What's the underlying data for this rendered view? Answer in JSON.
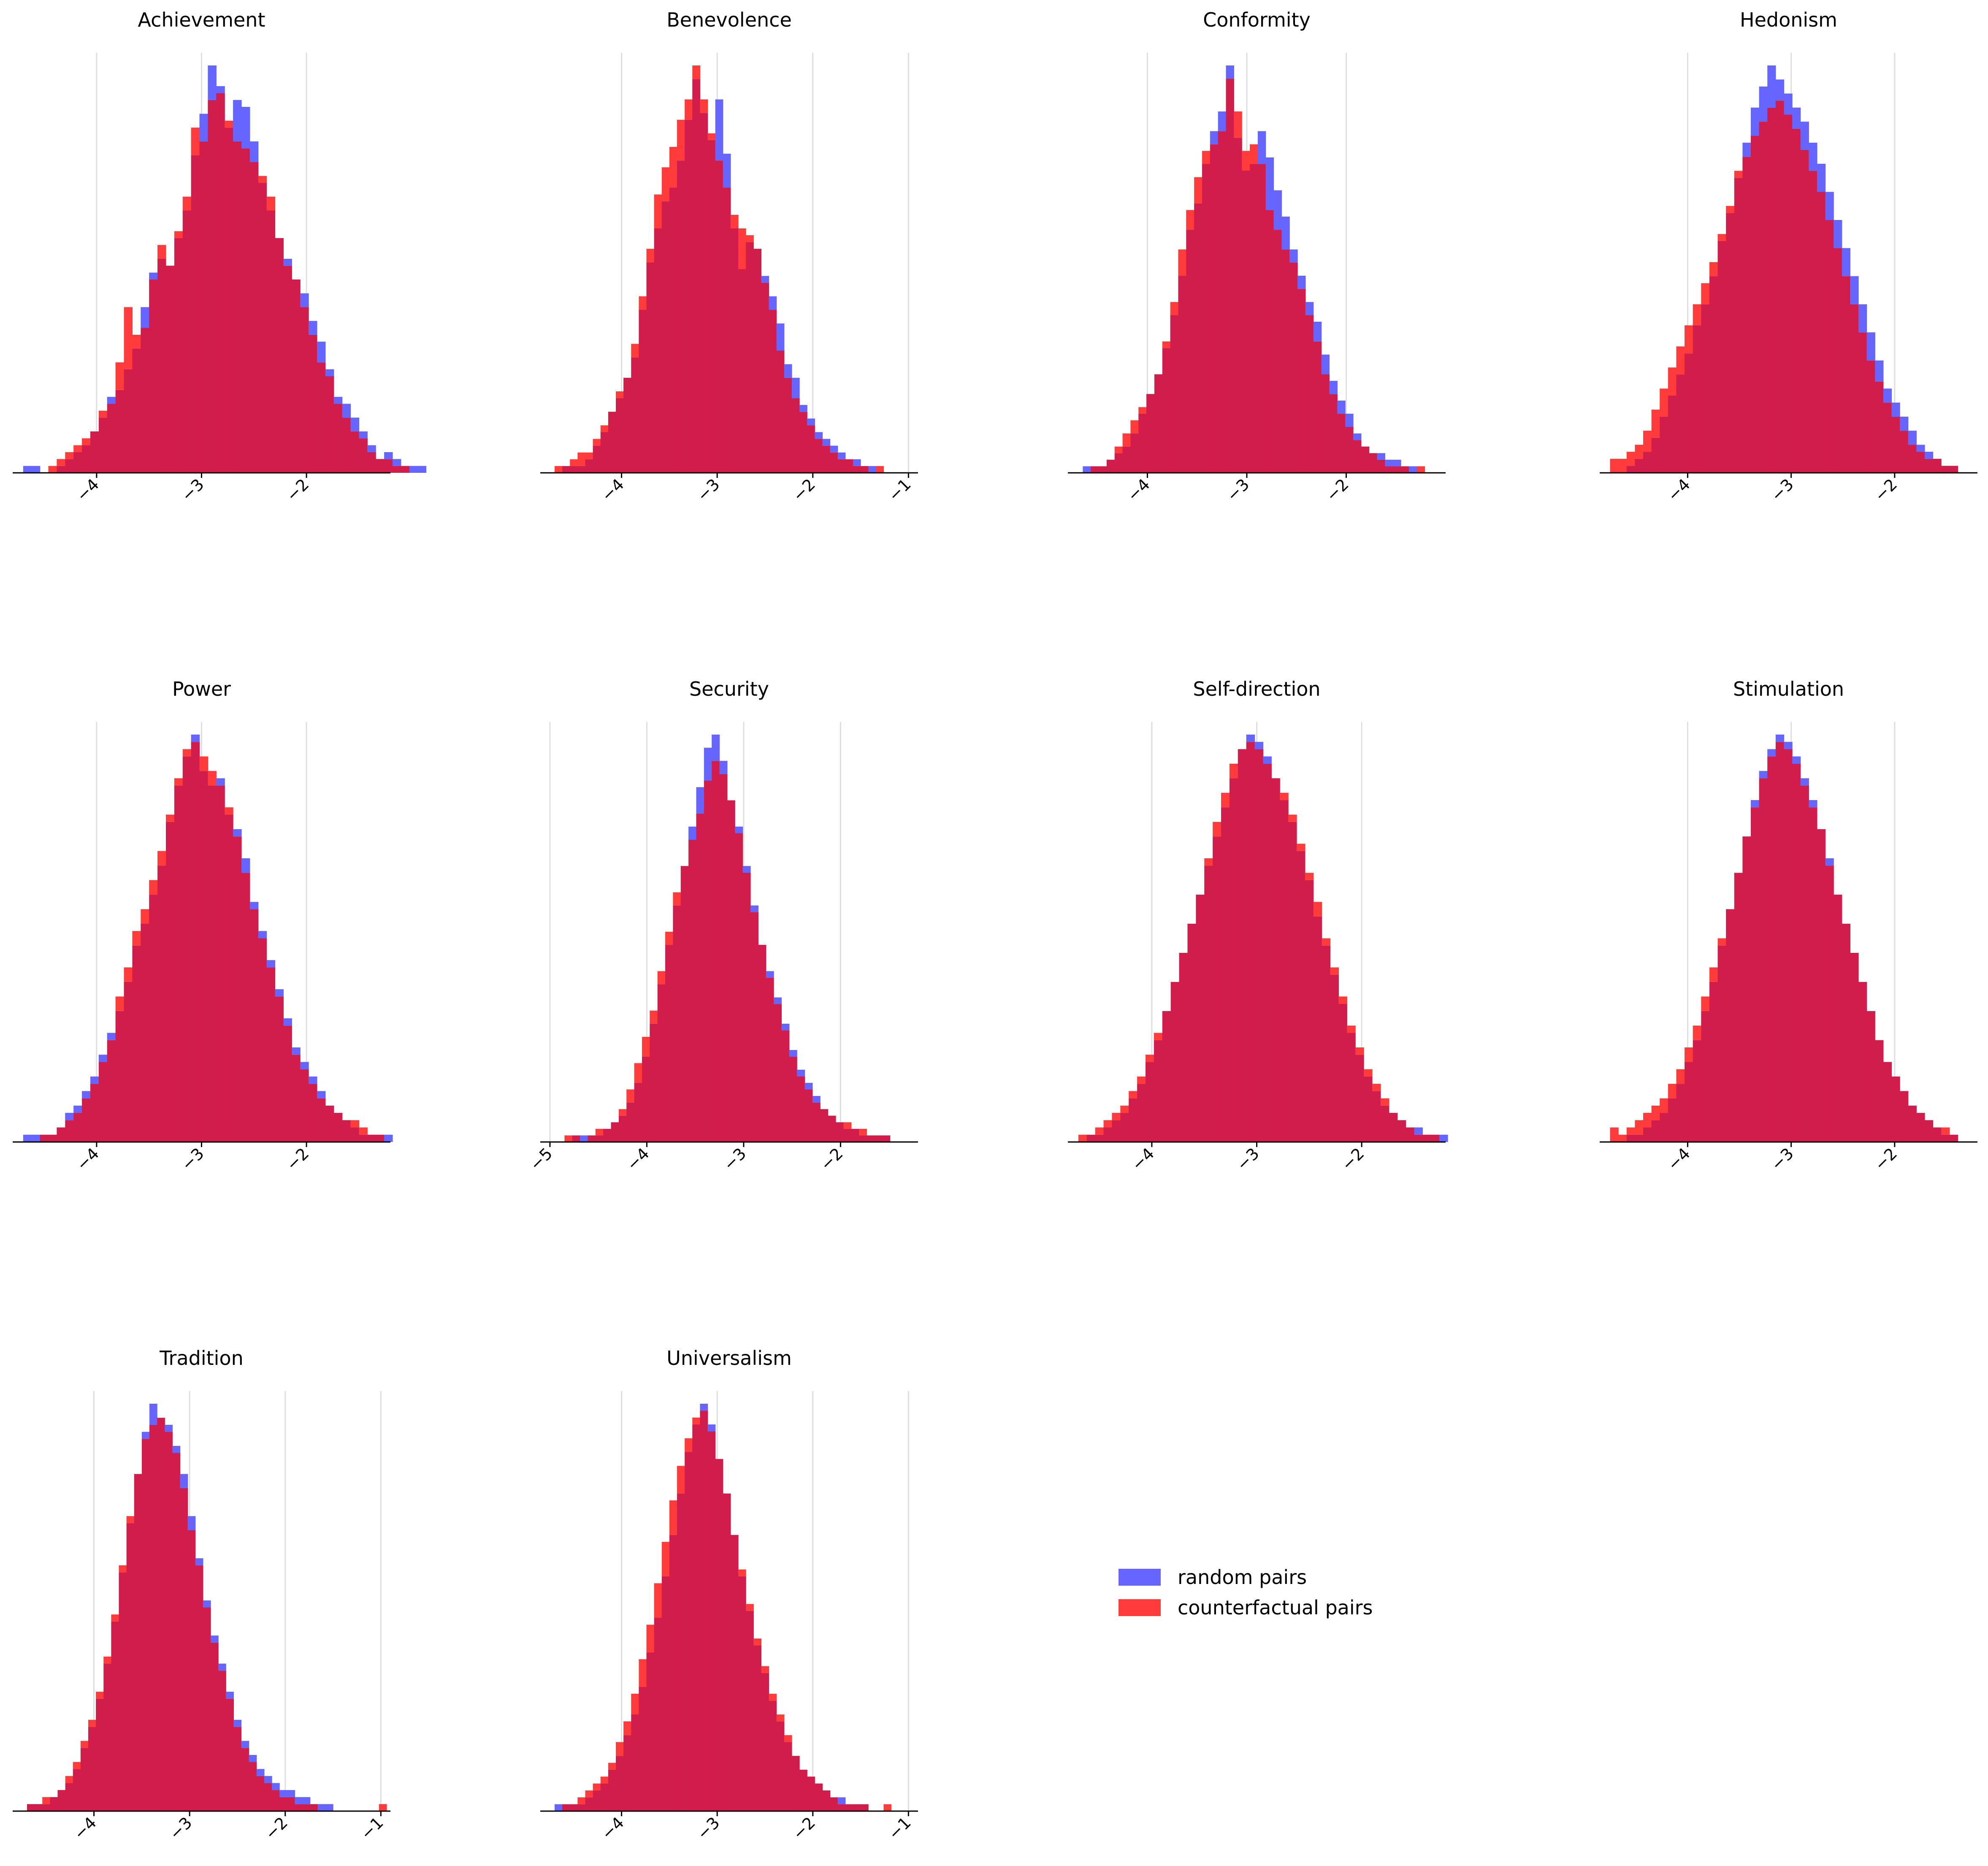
{
  "chart_data": {
    "type": "histogram-grid",
    "colors": {
      "random": "#6666ff",
      "counterfactual": "#ff3b3b",
      "overlap": "#d11d4c"
    },
    "legend": {
      "placement": "center-left of empty grid cell",
      "entries": [
        "random pairs",
        "counterfactual pairs"
      ]
    },
    "series": [
      {
        "name": "random pairs"
      },
      {
        "name": "counterfactual pairs"
      }
    ],
    "panels": [
      {
        "title": "Achievement",
        "xlim": [
          -4.8,
          -1.2
        ],
        "ticks": [
          -4,
          -3,
          -2
        ],
        "tick_labels": [
          "−4",
          "−3",
          "−2"
        ],
        "bin_start": -4.7,
        "bin_width": 0.08,
        "random": [
          1,
          1,
          0,
          0,
          1,
          2,
          3,
          4,
          6,
          8,
          11,
          12,
          15,
          18,
          24,
          29,
          31,
          30,
          34,
          38,
          46,
          52,
          59,
          56,
          50,
          54,
          53,
          48,
          42,
          38,
          34,
          31,
          28,
          26,
          22,
          19,
          15,
          11,
          10,
          8,
          6,
          4,
          2,
          3,
          2,
          1,
          1,
          1
        ],
        "counterfactual": [
          0,
          0,
          0,
          1,
          2,
          3,
          4,
          5,
          6,
          9,
          10,
          16,
          24,
          20,
          21,
          28,
          33,
          30,
          35,
          40,
          50,
          48,
          54,
          55,
          51,
          48,
          47,
          45,
          43,
          40,
          34,
          30,
          28,
          24,
          20,
          16,
          14,
          10,
          8,
          6,
          5,
          3,
          2,
          2,
          1,
          1,
          0,
          0
        ]
      },
      {
        "title": "Benevolence",
        "xlim": [
          -4.85,
          -0.9
        ],
        "ticks": [
          -4,
          -3,
          -2,
          -1
        ],
        "tick_labels": [
          "−4",
          "−3",
          "−2",
          "−1"
        ],
        "bin_start": -4.7,
        "bin_width": 0.08,
        "random": [
          0,
          1,
          1,
          1,
          2,
          4,
          6,
          9,
          11,
          14,
          17,
          24,
          31,
          36,
          40,
          42,
          46,
          52,
          58,
          53,
          49,
          55,
          47,
          36,
          30,
          34,
          33,
          29,
          26,
          22,
          16,
          14,
          10,
          8,
          6,
          5,
          4,
          3,
          2,
          2,
          1,
          1,
          0,
          0
        ],
        "counterfactual": [
          1,
          1,
          2,
          3,
          3,
          5,
          7,
          9,
          12,
          14,
          19,
          26,
          33,
          41,
          45,
          48,
          52,
          55,
          60,
          55,
          50,
          46,
          42,
          38,
          36,
          35,
          33,
          28,
          24,
          18,
          14,
          11,
          9,
          7,
          5,
          4,
          3,
          2,
          2,
          1,
          1,
          0,
          1,
          0
        ]
      },
      {
        "title": "Conformity",
        "xlim": [
          -4.8,
          -1.0
        ],
        "ticks": [
          -4,
          -3,
          -2
        ],
        "tick_labels": [
          "−4",
          "−3",
          "−2"
        ],
        "bin_start": -4.65,
        "bin_width": 0.08,
        "random": [
          1,
          1,
          1,
          2,
          3,
          4,
          6,
          9,
          12,
          15,
          19,
          24,
          30,
          37,
          41,
          47,
          52,
          55,
          62,
          51,
          46,
          47,
          52,
          48,
          43,
          39,
          34,
          30,
          26,
          23,
          18,
          14,
          11,
          9,
          6,
          4,
          3,
          3,
          2,
          2,
          1,
          1,
          0,
          0
        ],
        "counterfactual": [
          0,
          1,
          1,
          2,
          4,
          6,
          8,
          10,
          12,
          15,
          20,
          26,
          34,
          40,
          45,
          49,
          50,
          52,
          60,
          55,
          49,
          50,
          47,
          40,
          37,
          34,
          32,
          28,
          24,
          20,
          15,
          12,
          9,
          7,
          5,
          4,
          3,
          2,
          1,
          1,
          1,
          0,
          1,
          0
        ]
      },
      {
        "title": "Hedonism",
        "xlim": [
          -4.85,
          -1.2
        ],
        "ticks": [
          -4,
          -3,
          -2
        ],
        "tick_labels": [
          "−4",
          "−3",
          "−2"
        ],
        "bin_start": -4.75,
        "bin_width": 0.08,
        "random": [
          0,
          0,
          1,
          2,
          3,
          5,
          8,
          11,
          14,
          17,
          21,
          24,
          28,
          33,
          37,
          42,
          47,
          52,
          55,
          58,
          56,
          54,
          52,
          50,
          47,
          44,
          40,
          36,
          32,
          28,
          24,
          20,
          16,
          12,
          10,
          8,
          6,
          4,
          3,
          2,
          1,
          1
        ],
        "counterfactual": [
          2,
          2,
          3,
          4,
          6,
          9,
          12,
          15,
          18,
          21,
          24,
          27,
          30,
          34,
          38,
          43,
          45,
          48,
          50,
          52,
          53,
          51,
          49,
          46,
          43,
          40,
          36,
          32,
          28,
          24,
          20,
          16,
          13,
          10,
          8,
          6,
          4,
          3,
          2,
          2,
          1,
          1
        ]
      },
      {
        "title": "Power",
        "xlim": [
          -4.8,
          -1.2
        ],
        "ticks": [
          -4,
          -3,
          -2
        ],
        "tick_labels": [
          "−4",
          "−3",
          "−2"
        ],
        "bin_start": -4.7,
        "bin_width": 0.08,
        "random": [
          1,
          1,
          1,
          1,
          2,
          4,
          5,
          7,
          9,
          12,
          15,
          18,
          22,
          27,
          30,
          34,
          38,
          44,
          49,
          53,
          56,
          51,
          49,
          50,
          45,
          43,
          39,
          33,
          29,
          25,
          21,
          17,
          13,
          11,
          9,
          7,
          5,
          4,
          3,
          2,
          1,
          1,
          1,
          1,
          0,
          0
        ],
        "counterfactual": [
          0,
          0,
          1,
          1,
          2,
          3,
          4,
          6,
          8,
          11,
          14,
          20,
          24,
          29,
          32,
          36,
          40,
          45,
          50,
          54,
          55,
          53,
          51,
          49,
          46,
          42,
          37,
          32,
          28,
          24,
          20,
          16,
          12,
          10,
          8,
          6,
          5,
          4,
          3,
          3,
          2,
          1,
          1,
          0,
          0,
          0
        ]
      },
      {
        "title": "Security",
        "xlim": [
          -5.1,
          -1.2
        ],
        "ticks": [
          -5,
          -4,
          -3,
          -2
        ],
        "tick_labels": [
          "−5",
          "−4",
          "−3",
          "−2"
        ],
        "bin_start": -4.85,
        "bin_width": 0.08,
        "random": [
          0,
          1,
          1,
          1,
          1,
          2,
          3,
          4,
          6,
          9,
          13,
          18,
          24,
          30,
          36,
          42,
          48,
          54,
          60,
          62,
          58,
          52,
          48,
          42,
          36,
          30,
          26,
          22,
          18,
          14,
          11,
          9,
          7,
          5,
          4,
          3,
          2,
          2,
          1,
          1,
          1,
          1
        ],
        "counterfactual": [
          1,
          1,
          0,
          1,
          2,
          2,
          3,
          5,
          8,
          12,
          16,
          20,
          26,
          32,
          38,
          42,
          46,
          50,
          55,
          58,
          56,
          52,
          47,
          41,
          35,
          30,
          25,
          21,
          17,
          13,
          10,
          8,
          6,
          5,
          4,
          3,
          3,
          2,
          2,
          1,
          1,
          1
        ]
      },
      {
        "title": "Self-direction",
        "xlim": [
          -4.8,
          -1.2
        ],
        "ticks": [
          -4,
          -3,
          -2
        ],
        "tick_labels": [
          "−4",
          "−3",
          "−2"
        ],
        "bin_start": -4.7,
        "bin_width": 0.08,
        "random": [
          0,
          1,
          1,
          2,
          3,
          4,
          6,
          8,
          11,
          14,
          18,
          22,
          26,
          30,
          34,
          38,
          42,
          46,
          50,
          54,
          56,
          55,
          53,
          50,
          47,
          44,
          40,
          36,
          31,
          27,
          23,
          19,
          15,
          12,
          9,
          7,
          5,
          4,
          3,
          2,
          2,
          1,
          1,
          1,
          0
        ],
        "counterfactual": [
          1,
          1,
          2,
          3,
          4,
          5,
          7,
          9,
          12,
          15,
          18,
          22,
          26,
          30,
          34,
          39,
          44,
          48,
          52,
          54,
          55,
          54,
          52,
          50,
          48,
          45,
          41,
          37,
          33,
          28,
          24,
          20,
          16,
          13,
          10,
          8,
          6,
          4,
          3,
          2,
          1,
          1,
          1,
          0,
          0
        ]
      },
      {
        "title": "Stimulation",
        "xlim": [
          -4.85,
          -1.2
        ],
        "ticks": [
          -4,
          -3,
          -2
        ],
        "tick_labels": [
          "−4",
          "−3",
          "−2"
        ],
        "bin_start": -4.75,
        "bin_width": 0.08,
        "random": [
          0,
          0,
          1,
          1,
          2,
          3,
          4,
          6,
          8,
          11,
          14,
          18,
          22,
          27,
          32,
          37,
          42,
          47,
          51,
          54,
          56,
          55,
          53,
          50,
          47,
          43,
          39,
          34,
          30,
          26,
          22,
          18,
          14,
          11,
          9,
          7,
          5,
          4,
          3,
          2,
          1,
          1
        ],
        "counterfactual": [
          2,
          1,
          2,
          3,
          4,
          5,
          6,
          8,
          10,
          13,
          16,
          20,
          24,
          28,
          32,
          37,
          42,
          46,
          50,
          53,
          55,
          54,
          52,
          49,
          46,
          43,
          38,
          34,
          30,
          26,
          22,
          18,
          14,
          11,
          9,
          7,
          5,
          4,
          3,
          2,
          2,
          1
        ]
      },
      {
        "title": "Tradition",
        "xlim": [
          -4.85,
          -0.9
        ],
        "ticks": [
          -4,
          -3,
          -2,
          -1
        ],
        "tick_labels": [
          "−4",
          "−3",
          "−2",
          "−1"
        ],
        "bin_start": -4.7,
        "bin_width": 0.08,
        "random": [
          1,
          1,
          1,
          2,
          3,
          4,
          6,
          9,
          12,
          16,
          21,
          27,
          34,
          41,
          48,
          54,
          58,
          56,
          55,
          52,
          48,
          42,
          36,
          30,
          25,
          21,
          17,
          13,
          10,
          8,
          6,
          5,
          4,
          3,
          3,
          2,
          2,
          1,
          1,
          1,
          0,
          0,
          0,
          0,
          0,
          0,
          0,
          0,
          0
        ],
        "counterfactual": [
          1,
          1,
          2,
          2,
          3,
          5,
          7,
          10,
          13,
          17,
          22,
          28,
          35,
          42,
          48,
          53,
          55,
          56,
          54,
          51,
          46,
          40,
          35,
          29,
          24,
          20,
          16,
          12,
          9,
          7,
          5,
          4,
          3,
          2,
          2,
          1,
          1,
          1,
          0,
          0,
          0,
          0,
          0,
          0,
          0,
          0,
          1,
          0,
          0
        ]
      },
      {
        "title": "Universalism",
        "xlim": [
          -4.85,
          -0.9
        ],
        "ticks": [
          -4,
          -3,
          -2,
          -1
        ],
        "tick_labels": [
          "−4",
          "−3",
          "−2",
          "−1"
        ],
        "bin_start": -4.7,
        "bin_width": 0.08,
        "random": [
          1,
          1,
          1,
          1,
          2,
          3,
          4,
          6,
          8,
          11,
          14,
          18,
          23,
          28,
          34,
          40,
          46,
          52,
          56,
          59,
          56,
          51,
          46,
          40,
          34,
          29,
          24,
          20,
          16,
          13,
          10,
          8,
          6,
          5,
          4,
          3,
          2,
          2,
          1,
          1,
          1,
          0,
          0,
          0,
          0
        ],
        "counterfactual": [
          0,
          1,
          1,
          2,
          3,
          4,
          5,
          7,
          10,
          13,
          17,
          22,
          27,
          33,
          39,
          45,
          50,
          54,
          57,
          58,
          55,
          51,
          46,
          40,
          35,
          30,
          25,
          21,
          17,
          14,
          11,
          8,
          6,
          5,
          4,
          3,
          2,
          1,
          1,
          1,
          1,
          0,
          0,
          1,
          0
        ]
      }
    ]
  }
}
